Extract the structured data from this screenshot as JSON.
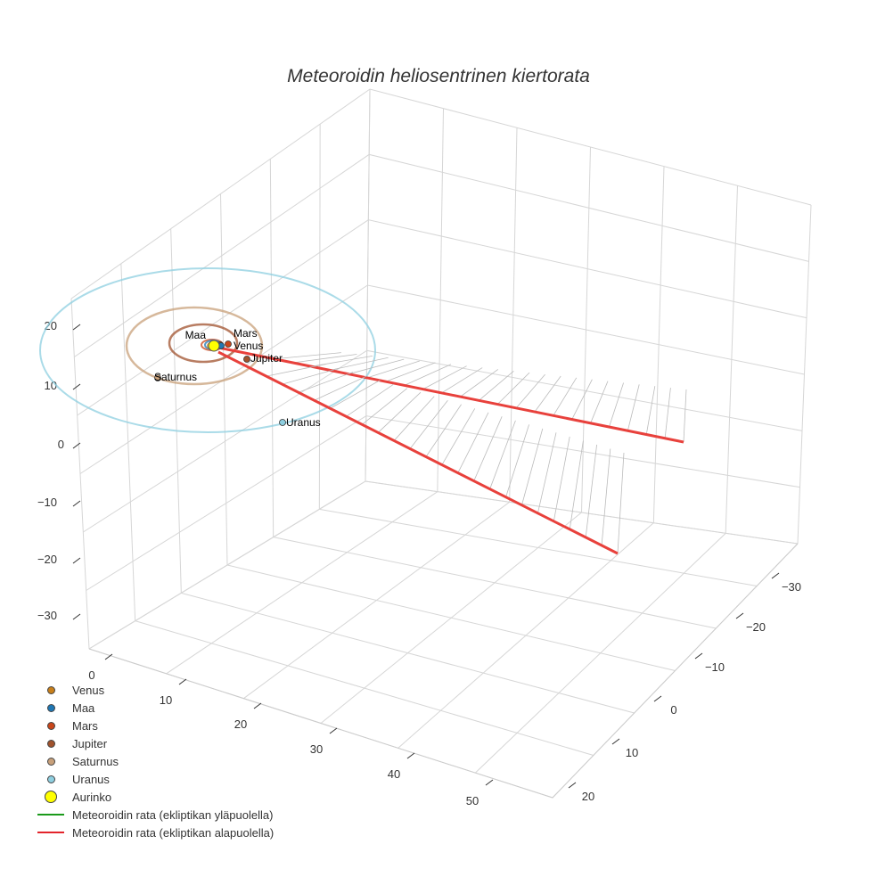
{
  "chart_data": {
    "type": "scatter3d",
    "title": "Meteoroidin heliosentrinen kiertorata",
    "axes": {
      "x": {
        "ticks": [
          "0",
          "10",
          "20",
          "30",
          "40",
          "50"
        ],
        "range": [
          -2,
          58
        ]
      },
      "y": {
        "ticks": [
          "−30",
          "−20",
          "−10",
          "0",
          "10",
          "20"
        ],
        "range": [
          -35,
          25
        ]
      },
      "z": {
        "ticks": [
          "20",
          "10",
          "0",
          "−10",
          "−20",
          "−30"
        ],
        "range": [
          -36,
          24
        ]
      }
    },
    "planets": [
      {
        "name": "Venus",
        "orbit_au": 0.72,
        "color": "#c87f1a"
      },
      {
        "name": "Maa",
        "orbit_au": 1.0,
        "color": "#1f77b4"
      },
      {
        "name": "Mars",
        "orbit_au": 1.52,
        "color": "#c9461a"
      },
      {
        "name": "Jupiter",
        "orbit_au": 5.2,
        "color": "#a0522d"
      },
      {
        "name": "Saturnus",
        "orbit_au": 9.54,
        "color": "#c8a07a"
      },
      {
        "name": "Uranus",
        "orbit_au": 19.2,
        "color": "#8ecfe0"
      }
    ],
    "sun": {
      "name": "Aurinko",
      "color": "#ffff00"
    },
    "series": [
      {
        "name": "Meteoroidin rata (ekliptikan yläpuolella)",
        "color": "#2ca02c"
      },
      {
        "name": "Meteoroidin rata (ekliptikan alapuolella)",
        "color": "#e8413c"
      }
    ],
    "legend_position": "bottom-left"
  }
}
